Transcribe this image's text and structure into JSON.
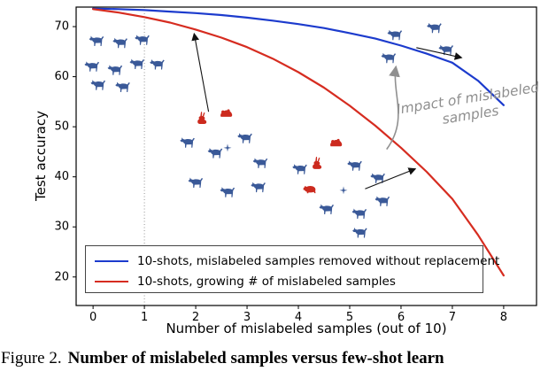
{
  "figure": {
    "caption_prefix": "Figure 2.",
    "caption_bold": "Number of mislabeled samples versus few-shot learn"
  },
  "colors": {
    "blue_curve": "#1c3bcd",
    "red_curve": "#d62c20",
    "blue_icon": "#3a5998",
    "red_icon": "#cc2a1e",
    "annotation_gray": "#909090",
    "axis": "#000000"
  },
  "chart_data": {
    "type": "line",
    "title": "",
    "xlabel": "Number of mislabeled samples (out of 10)",
    "ylabel": "Test accuracy",
    "xlim": [
      -0.33,
      8.64
    ],
    "ylim": [
      14.3,
      73.9
    ],
    "x_ticks": [
      0,
      1,
      2,
      3,
      4,
      5,
      6,
      7,
      8
    ],
    "y_ticks": [
      20,
      30,
      40,
      50,
      60,
      70
    ],
    "grid": false,
    "legend_position": "lower left",
    "vline_x": 1,
    "series": [
      {
        "name": "10-shots, mislabeled samples removed without replacement",
        "color_key": "blue_curve",
        "x": [
          0,
          0.5,
          1,
          1.5,
          2,
          2.5,
          3,
          3.5,
          4,
          4.5,
          5,
          5.5,
          6,
          6.5,
          7,
          7.5,
          8
        ],
        "y": [
          73.6,
          73.5,
          73.3,
          73.0,
          72.7,
          72.3,
          71.8,
          71.2,
          70.5,
          69.7,
          68.7,
          67.6,
          66.2,
          64.6,
          62.8,
          59.2,
          54.3
        ]
      },
      {
        "name": "10-shots, growing # of mislabeled samples",
        "color_key": "red_curve",
        "x": [
          0,
          0.5,
          1,
          1.5,
          2,
          2.5,
          3,
          3.5,
          4,
          4.5,
          5,
          5.5,
          6,
          6.5,
          7,
          7.5,
          8
        ],
        "y": [
          73.5,
          72.8,
          71.9,
          70.8,
          69.4,
          67.8,
          65.9,
          63.6,
          60.9,
          57.8,
          54.2,
          50.2,
          45.8,
          41.0,
          35.6,
          28.4,
          20.3
        ]
      }
    ],
    "annotations": {
      "impact_label": {
        "text_lines": [
          "Impact of mislabeled",
          "samples"
        ],
        "x": 7.2,
        "y": 53.5,
        "rotation": -9
      },
      "arrows": [
        {
          "from": [
            2.25,
            53.0
          ],
          "to": [
            1.97,
            68.6
          ]
        },
        {
          "from": [
            5.3,
            37.6
          ],
          "to": [
            6.28,
            41.6
          ]
        },
        {
          "from": [
            6.3,
            65.8
          ],
          "to": [
            7.18,
            63.8
          ]
        }
      ],
      "curved_arrow": {
        "points": [
          [
            5.72,
            45.5
          ],
          [
            6.15,
            51.5
          ],
          [
            5.82,
            56.5
          ],
          [
            5.9,
            62.0
          ]
        ]
      }
    },
    "scatter_icons": [
      {
        "icon": "dog",
        "color_key": "blue_icon",
        "x": 0.09,
        "y": 67.0
      },
      {
        "icon": "dog",
        "color_key": "blue_icon",
        "x": 0.55,
        "y": 66.6
      },
      {
        "icon": "dog",
        "color_key": "blue_icon",
        "x": 0.98,
        "y": 67.2
      },
      {
        "icon": "dog",
        "color_key": "blue_icon",
        "x": 0.0,
        "y": 61.9
      },
      {
        "icon": "dog",
        "color_key": "blue_icon",
        "x": 0.45,
        "y": 61.2
      },
      {
        "icon": "dog",
        "color_key": "blue_icon",
        "x": 0.88,
        "y": 62.4
      },
      {
        "icon": "dog",
        "color_key": "blue_icon",
        "x": 1.27,
        "y": 62.3
      },
      {
        "icon": "dog",
        "color_key": "blue_icon",
        "x": 0.12,
        "y": 58.2
      },
      {
        "icon": "dog",
        "color_key": "blue_icon",
        "x": 0.6,
        "y": 57.8
      },
      {
        "icon": "rabbit",
        "color_key": "red_icon",
        "x": 2.12,
        "y": 51.8
      },
      {
        "icon": "frog",
        "color_key": "red_icon",
        "x": 2.6,
        "y": 52.9
      },
      {
        "icon": "dog",
        "color_key": "blue_icon",
        "x": 1.86,
        "y": 46.7
      },
      {
        "icon": "dog",
        "color_key": "blue_icon",
        "x": 2.4,
        "y": 44.6
      },
      {
        "icon": "sparkle",
        "color_key": "blue_icon",
        "x": 2.62,
        "y": 45.8
      },
      {
        "icon": "dog",
        "color_key": "blue_icon",
        "x": 2.98,
        "y": 47.6
      },
      {
        "icon": "dog",
        "color_key": "blue_icon",
        "x": 3.28,
        "y": 42.6
      },
      {
        "icon": "dog",
        "color_key": "blue_icon",
        "x": 2.02,
        "y": 38.7
      },
      {
        "icon": "dog",
        "color_key": "blue_icon",
        "x": 2.64,
        "y": 36.8
      },
      {
        "icon": "dog",
        "color_key": "blue_icon",
        "x": 3.24,
        "y": 37.8
      },
      {
        "icon": "frog",
        "color_key": "red_icon",
        "x": 4.74,
        "y": 47.0
      },
      {
        "icon": "rabbit",
        "color_key": "red_icon",
        "x": 4.36,
        "y": 42.8
      },
      {
        "icon": "pig",
        "color_key": "red_icon",
        "x": 4.22,
        "y": 37.6
      },
      {
        "icon": "dog",
        "color_key": "blue_icon",
        "x": 4.05,
        "y": 41.4
      },
      {
        "icon": "dog",
        "color_key": "blue_icon",
        "x": 5.12,
        "y": 42.1
      },
      {
        "icon": "dog",
        "color_key": "blue_icon",
        "x": 5.57,
        "y": 39.6
      },
      {
        "icon": "sparkle",
        "color_key": "blue_icon",
        "x": 4.88,
        "y": 37.3
      },
      {
        "icon": "dog",
        "color_key": "blue_icon",
        "x": 4.57,
        "y": 33.4
      },
      {
        "icon": "dog",
        "color_key": "blue_icon",
        "x": 5.21,
        "y": 32.5
      },
      {
        "icon": "dog",
        "color_key": "blue_icon",
        "x": 5.66,
        "y": 35.0
      },
      {
        "icon": "dog",
        "color_key": "blue_icon",
        "x": 5.22,
        "y": 28.7
      },
      {
        "icon": "dog",
        "color_key": "blue_icon",
        "x": 5.9,
        "y": 68.2
      },
      {
        "icon": "dog",
        "color_key": "blue_icon",
        "x": 6.67,
        "y": 69.6
      },
      {
        "icon": "dog",
        "color_key": "blue_icon",
        "x": 5.78,
        "y": 63.6
      },
      {
        "icon": "dog",
        "color_key": "blue_icon",
        "x": 6.9,
        "y": 65.2
      }
    ]
  }
}
